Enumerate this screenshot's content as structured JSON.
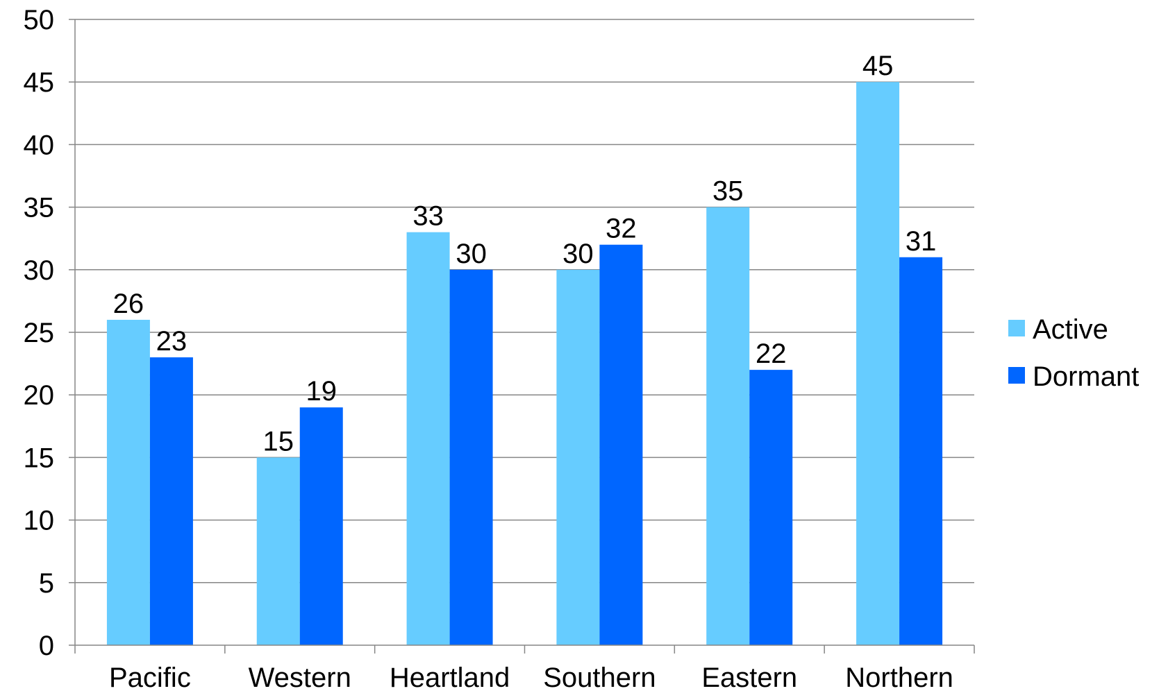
{
  "chart_data": {
    "type": "bar",
    "categories": [
      "Pacific",
      "Western",
      "Heartland",
      "Southern",
      "Eastern",
      "Northern"
    ],
    "series": [
      {
        "name": "Active",
        "values": [
          26,
          15,
          33,
          30,
          35,
          45
        ],
        "color": "#66CCFF"
      },
      {
        "name": "Dormant",
        "values": [
          23,
          19,
          30,
          32,
          22,
          31
        ],
        "color": "#0066FF"
      }
    ],
    "title": "",
    "xlabel": "",
    "ylabel": "",
    "ylim": [
      0,
      50
    ],
    "yticks": [
      0,
      5,
      10,
      15,
      20,
      25,
      30,
      35,
      40,
      45,
      50
    ],
    "ytick_labels": [
      "0",
      "5",
      "10",
      "15",
      "20",
      "25",
      "30",
      "35",
      "40",
      "45",
      "50"
    ],
    "grid": true,
    "data_labels": true,
    "legend_position": "right",
    "gridline_color": "#868686",
    "axis_color": "#868686"
  }
}
